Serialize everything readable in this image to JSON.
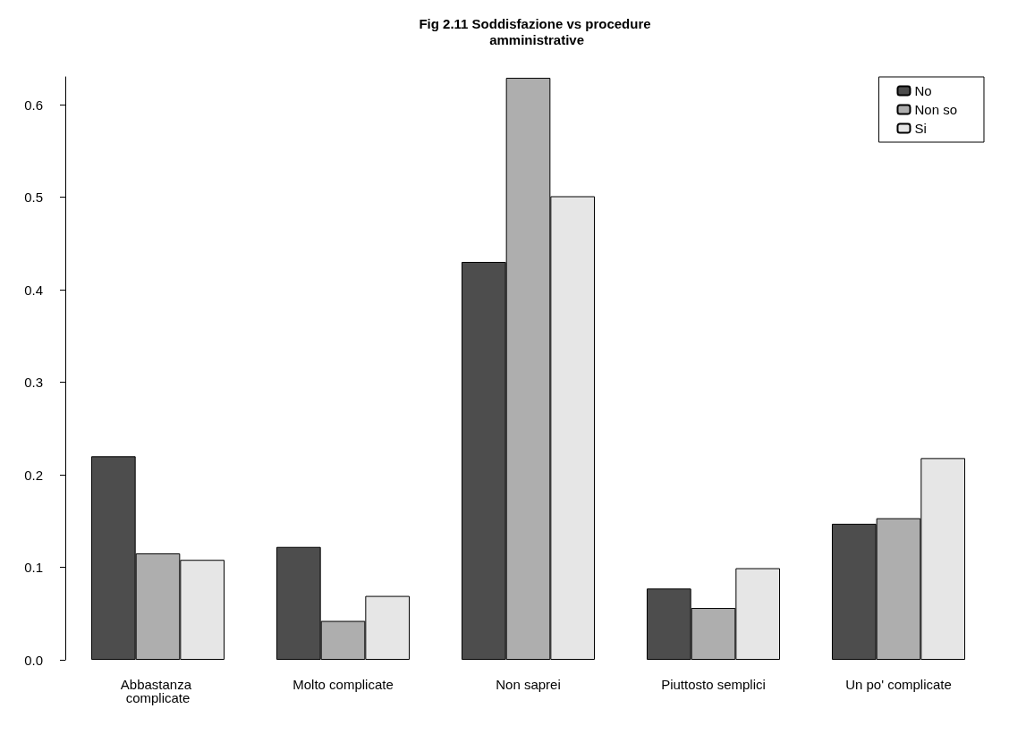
{
  "chart_data": {
    "type": "bar",
    "title": "Fig 2.11 Soddisfazione vs procedure amministrative",
    "categories": [
      "Abbastanza complicate",
      "Molto complicate",
      "Non saprei",
      "Piuttosto semplici",
      "Un po' complicate"
    ],
    "series": [
      {
        "name": "No",
        "color": "#4d4d4d",
        "values": [
          0.22,
          0.122,
          0.43,
          0.077,
          0.147
        ]
      },
      {
        "name": "Non so",
        "color": "#aeaeae",
        "values": [
          0.115,
          0.042,
          0.629,
          0.056,
          0.153
        ]
      },
      {
        "name": "Si",
        "color": "#e6e6e6",
        "values": [
          0.108,
          0.069,
          0.501,
          0.099,
          0.218
        ]
      }
    ],
    "ylim": [
      0,
      0.63
    ],
    "yticks": [
      {
        "value": 0,
        "label": "0.0"
      },
      0.1,
      0.2,
      0.3,
      0.4,
      0.5,
      0.6
    ],
    "grid": false,
    "legend": "top right"
  }
}
